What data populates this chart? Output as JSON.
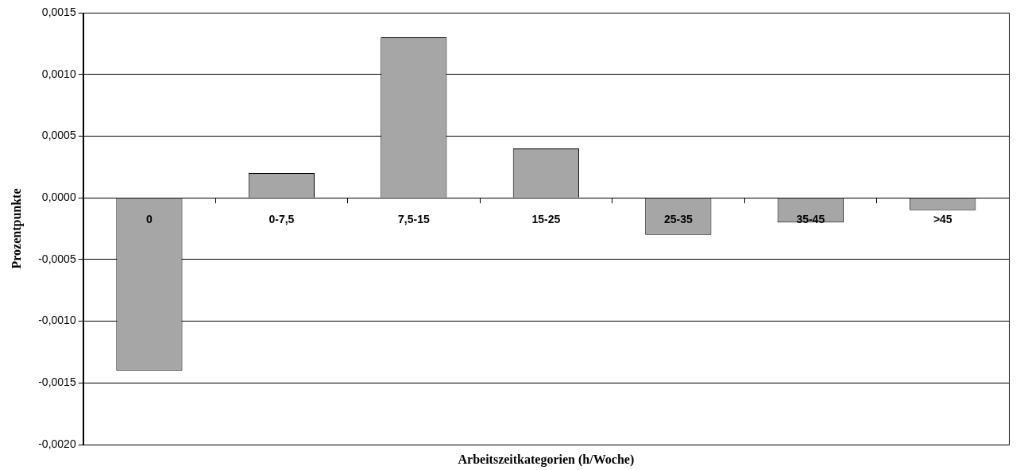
{
  "chart_data": {
    "type": "bar",
    "xlabel": "Arbeitszeitkategorien (h/Woche)",
    "ylabel": "Prozentpunkte",
    "categories": [
      "0",
      "0-7,5",
      "7,5-15",
      "15-25",
      "25-35",
      "35-45",
      ">45"
    ],
    "values": [
      -0.0014,
      0.0002,
      0.0013,
      0.0004,
      -0.0003,
      -0.0002,
      -0.0001
    ],
    "color": "#a6a6a6",
    "ylim": [
      -0.002,
      0.0015
    ],
    "yticks": [
      {
        "value": -0.002,
        "label": "-0,0020"
      },
      {
        "value": -0.0015,
        "label": "-0,0015"
      },
      {
        "value": -0.001,
        "label": "-0,0010"
      },
      {
        "value": -0.0005,
        "label": "-0,0005"
      },
      {
        "value": 0,
        "label": "0,0000"
      },
      {
        "value": 0.0005,
        "label": "0,0005"
      },
      {
        "value": 0.001,
        "label": "0,0010"
      },
      {
        "value": 0.0015,
        "label": "0,0015"
      }
    ],
    "grid": "y",
    "legend": false
  }
}
